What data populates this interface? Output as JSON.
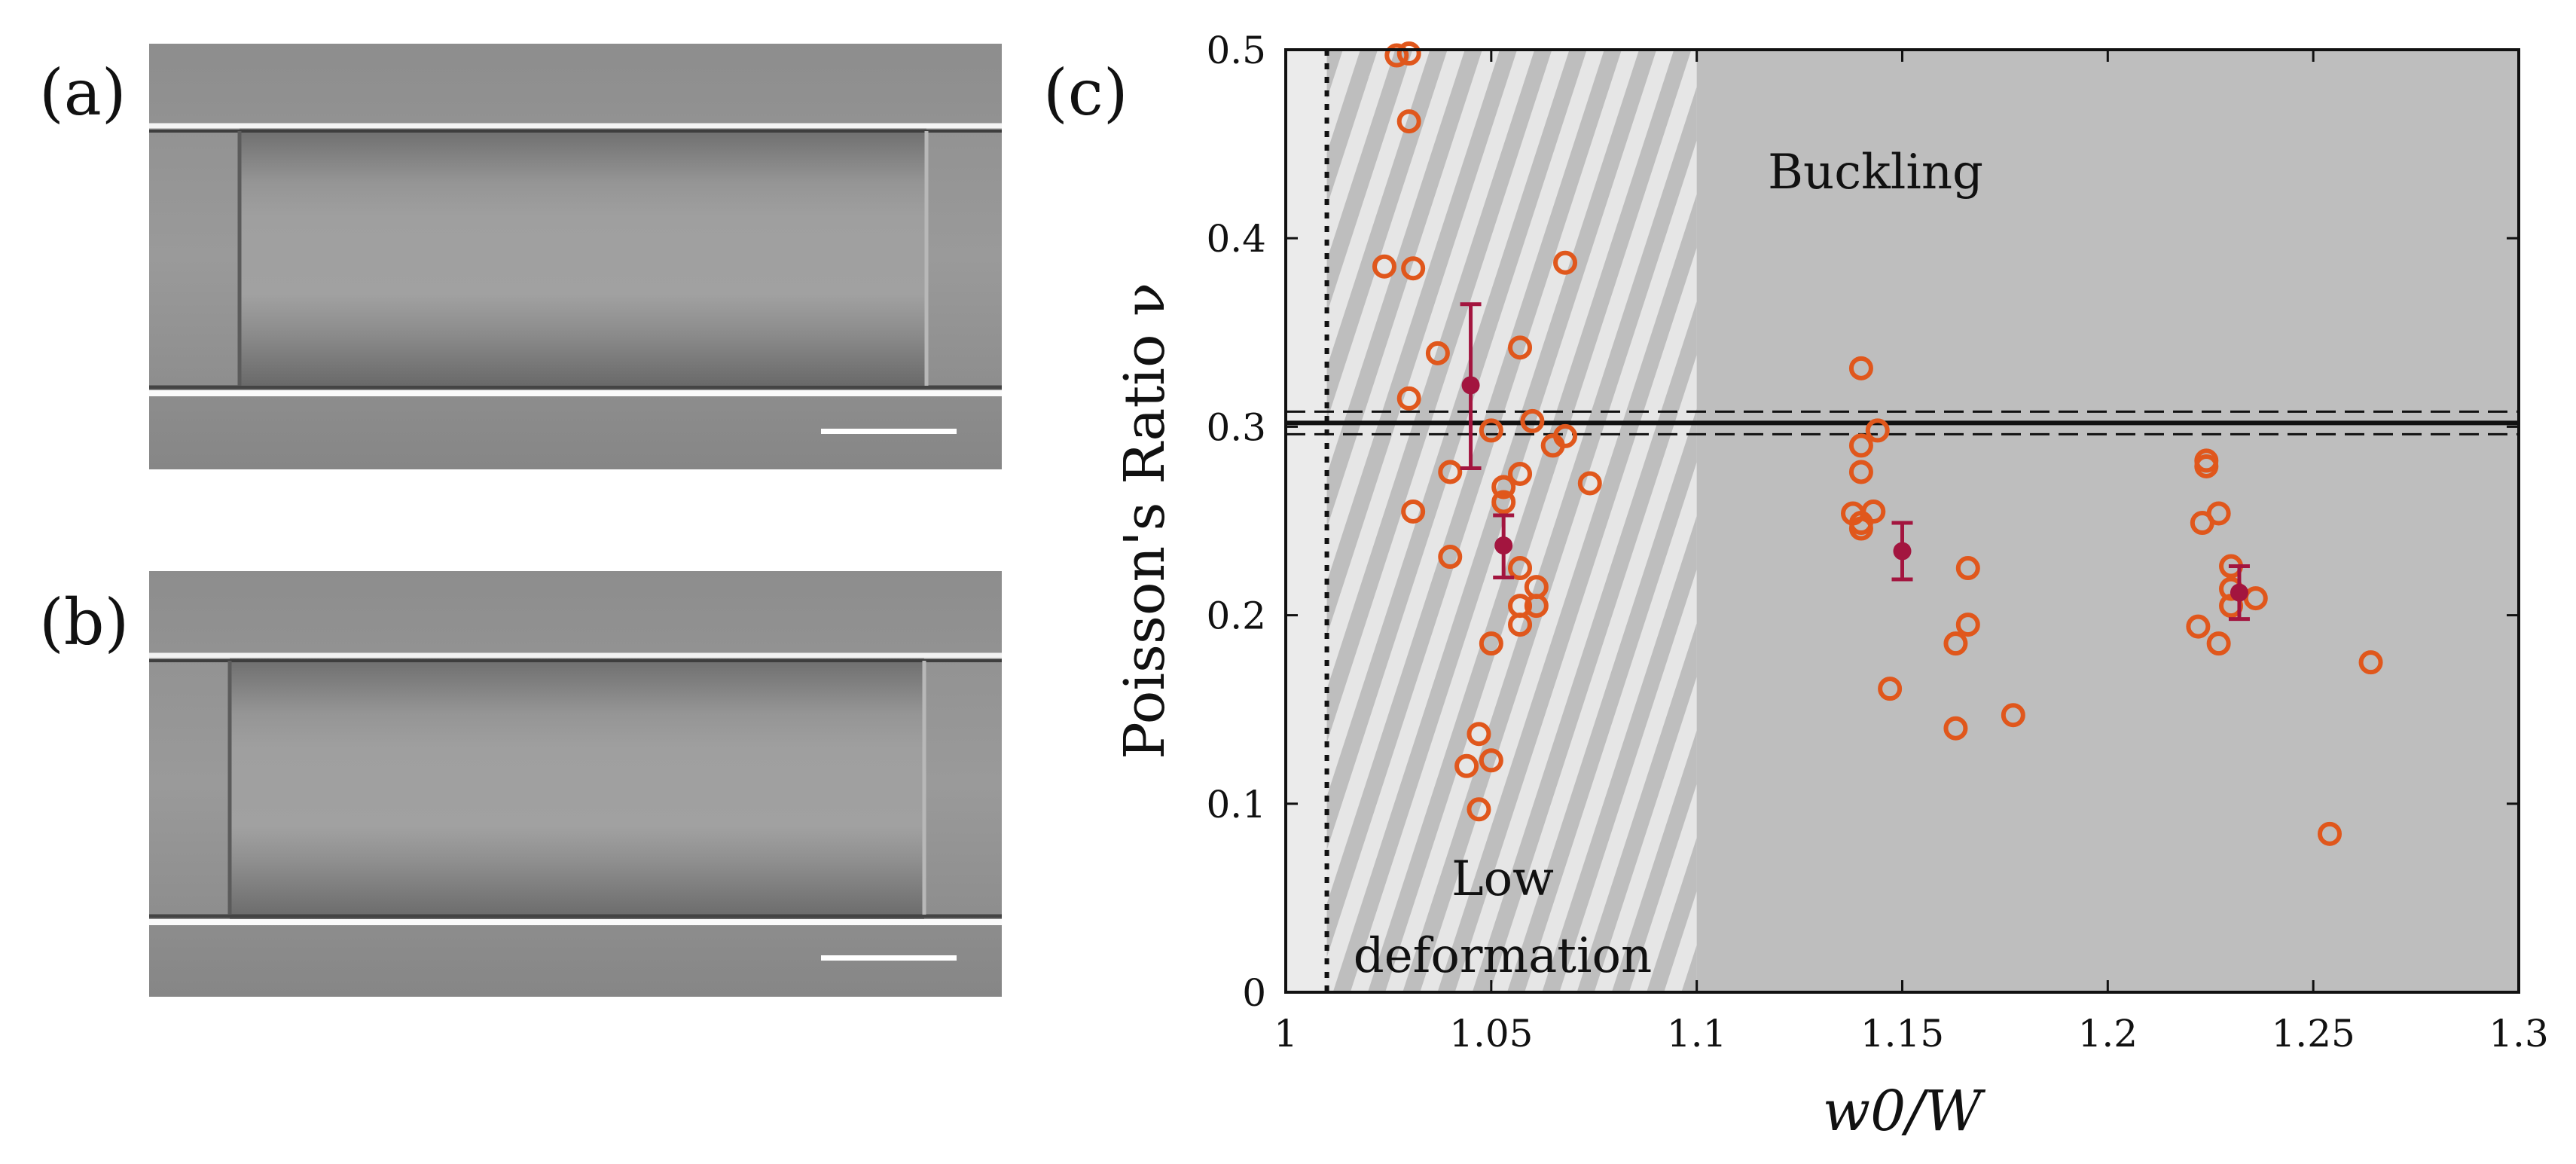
{
  "panels": {
    "a": "(a)",
    "b": "(b)",
    "c": "(c)"
  },
  "micrographs": [
    {
      "id": "a",
      "description_icon": "micrograph-image",
      "scale_bar": true
    },
    {
      "id": "b",
      "description_icon": "micrograph-image",
      "scale_bar": true
    }
  ],
  "colors": {
    "scatter": "#e0571c",
    "mean": "#a3153f",
    "region_light": "#ebebeb",
    "region_dark": "#bebebe",
    "stripe_light": "#e6e6e6"
  },
  "chart_data": {
    "type": "scatter",
    "xlabel": "w0/W",
    "ylabel": "Poisson's Ratio ν",
    "xlim": [
      1.0,
      1.3
    ],
    "ylim": [
      0,
      0.5
    ],
    "xticks": [
      "1",
      "1.05",
      "1.1",
      "1.15",
      "1.2",
      "1.25",
      "1.3"
    ],
    "yticks": [
      "0",
      "0.1",
      "0.2",
      "0.3",
      "0.4",
      "0.5"
    ],
    "grid": false,
    "regions": [
      {
        "name": "Low deformation",
        "label_line1": "Low",
        "label_line2": "deformation",
        "x_range": [
          1.01,
          1.1
        ],
        "style": "hatched"
      },
      {
        "name": "Buckling",
        "label": "Buckling",
        "x_range": [
          1.1,
          1.3
        ],
        "style": "gray"
      }
    ],
    "reference_lines": {
      "vertical_dotted_x": 1.01,
      "horizontal_solid_y": 0.302,
      "horizontal_dashed_y": [
        0.296,
        0.308
      ]
    },
    "series": [
      {
        "name": "Individual measurements",
        "marker": "open-circle",
        "points": [
          [
            1.024,
            0.385
          ],
          [
            1.027,
            0.497
          ],
          [
            1.03,
            0.498
          ],
          [
            1.03,
            0.462
          ],
          [
            1.031,
            0.384
          ],
          [
            1.03,
            0.315
          ],
          [
            1.031,
            0.255
          ],
          [
            1.037,
            0.339
          ],
          [
            1.04,
            0.276
          ],
          [
            1.04,
            0.231
          ],
          [
            1.044,
            0.12
          ],
          [
            1.047,
            0.137
          ],
          [
            1.047,
            0.097
          ],
          [
            1.05,
            0.298
          ],
          [
            1.05,
            0.185
          ],
          [
            1.05,
            0.123
          ],
          [
            1.053,
            0.268
          ],
          [
            1.053,
            0.26
          ],
          [
            1.057,
            0.342
          ],
          [
            1.057,
            0.275
          ],
          [
            1.057,
            0.225
          ],
          [
            1.057,
            0.205
          ],
          [
            1.057,
            0.195
          ],
          [
            1.06,
            0.303
          ],
          [
            1.061,
            0.215
          ],
          [
            1.061,
            0.205
          ],
          [
            1.065,
            0.29
          ],
          [
            1.068,
            0.295
          ],
          [
            1.068,
            0.387
          ],
          [
            1.074,
            0.27
          ],
          [
            1.138,
            0.254
          ],
          [
            1.14,
            0.331
          ],
          [
            1.14,
            0.29
          ],
          [
            1.14,
            0.276
          ],
          [
            1.14,
            0.249
          ],
          [
            1.14,
            0.246
          ],
          [
            1.143,
            0.255
          ],
          [
            1.144,
            0.298
          ],
          [
            1.147,
            0.161
          ],
          [
            1.163,
            0.185
          ],
          [
            1.163,
            0.14
          ],
          [
            1.166,
            0.195
          ],
          [
            1.166,
            0.225
          ],
          [
            1.177,
            0.147
          ],
          [
            1.222,
            0.194
          ],
          [
            1.223,
            0.249
          ],
          [
            1.224,
            0.282
          ],
          [
            1.224,
            0.279
          ],
          [
            1.227,
            0.254
          ],
          [
            1.227,
            0.185
          ],
          [
            1.23,
            0.226
          ],
          [
            1.23,
            0.214
          ],
          [
            1.23,
            0.205
          ],
          [
            1.236,
            0.209
          ],
          [
            1.254,
            0.084
          ],
          [
            1.264,
            0.175
          ]
        ]
      },
      {
        "name": "Mean with error bars",
        "marker": "filled-circle",
        "points": [
          {
            "x": 1.045,
            "y": 0.322,
            "err_low": 0.278,
            "err_high": 0.365
          },
          {
            "x": 1.053,
            "y": 0.237,
            "err_low": 0.22,
            "err_high": 0.253
          },
          {
            "x": 1.15,
            "y": 0.234,
            "err_low": 0.219,
            "err_high": 0.249
          },
          {
            "x": 1.232,
            "y": 0.212,
            "err_low": 0.198,
            "err_high": 0.226
          }
        ]
      }
    ]
  }
}
